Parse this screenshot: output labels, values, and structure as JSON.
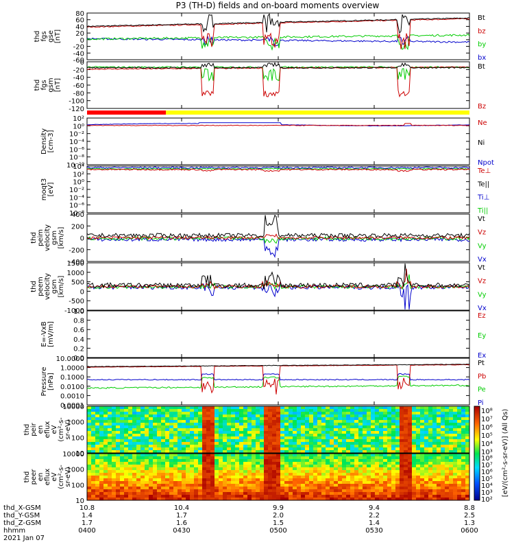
{
  "title": "P3 (TH-D) fields and on-board moments overview",
  "chart_data": [
    {
      "type": "line",
      "id": "fgs-gse",
      "ylabel": [
        "thd",
        "fgs",
        "gse",
        "[nT]"
      ],
      "yticks": [
        "80",
        "60",
        "40",
        "20",
        "0",
        "-20",
        "-40",
        "-60"
      ],
      "ylim": [
        -60,
        80
      ],
      "legend": [
        {
          "label": "Bt",
          "color": "#000000"
        },
        {
          "label": "bz",
          "color": "#cc0000"
        },
        {
          "label": "by",
          "color": "#00cc00"
        },
        {
          "label": "bx",
          "color": "#0000cc"
        }
      ]
    },
    {
      "type": "line",
      "id": "fgs-gsm",
      "ylabel": [
        "thd",
        "fgs",
        "gsm",
        "[nT]"
      ],
      "yticks": [
        "0",
        "-20",
        "-40",
        "-60",
        "-80",
        "-100",
        "-120"
      ],
      "ylim": [
        -130,
        10
      ],
      "legend": [
        {
          "label": "Bt",
          "color": "#000000"
        },
        {
          "label": "Bz",
          "color": "#cc0000"
        }
      ]
    },
    {
      "type": "line",
      "id": "density",
      "ylabel": [
        "Density",
        "[cm-3]"
      ],
      "yticks": [
        "10²",
        "10⁰",
        "10⁻²",
        "10⁻⁴",
        "10⁻⁶",
        "10⁻⁸",
        "10⁻¹⁰"
      ],
      "scale": "log",
      "legend": [
        {
          "label": "Ne",
          "color": "#cc0000"
        },
        {
          "label": "Ni",
          "color": "#000000"
        },
        {
          "label": "Npot",
          "color": "#0000cc"
        }
      ]
    },
    {
      "type": "line",
      "id": "temperature",
      "ylabel": [
        "moqt3",
        "[eV]"
      ],
      "yticks": [
        "10⁴",
        "10²",
        "10⁰",
        "10⁻²",
        "10⁻⁴",
        "10⁻⁶",
        "10⁻⁸"
      ],
      "scale": "log",
      "legend": [
        {
          "label": "Te⊥",
          "color": "#cc0000"
        },
        {
          "label": "Te||",
          "color": "#000000"
        },
        {
          "label": "Ti⊥",
          "color": "#0000cc"
        },
        {
          "label": "Ti||",
          "color": "#00cc00"
        }
      ]
    },
    {
      "type": "line",
      "id": "peim-velocity",
      "ylabel": [
        "thd",
        "peim",
        "velocity",
        "gsm",
        "[km/s]"
      ],
      "yticks": [
        "400",
        "200",
        "0",
        "-200",
        "-400"
      ],
      "ylim": [
        -400,
        400
      ],
      "legend": [
        {
          "label": "Vt",
          "color": "#000000"
        },
        {
          "label": "Vz",
          "color": "#cc0000"
        },
        {
          "label": "Vy",
          "color": "#00cc00"
        },
        {
          "label": "Vx",
          "color": "#0000cc"
        }
      ]
    },
    {
      "type": "line",
      "id": "peem-velocity",
      "ylabel": [
        "thd",
        "peem",
        "velocity",
        "gsm",
        "[km/s]"
      ],
      "yticks": [
        "1500",
        "1000",
        "500",
        "0",
        "-500",
        "-1000"
      ],
      "ylim": [
        -1500,
        1500
      ],
      "legend": [
        {
          "label": "Vt",
          "color": "#000000"
        },
        {
          "label": "Vz",
          "color": "#cc0000"
        },
        {
          "label": "Vy",
          "color": "#00cc00"
        },
        {
          "label": "Vx",
          "color": "#0000cc"
        }
      ]
    },
    {
      "type": "line",
      "id": "efield",
      "ylabel": [
        "E=-VxB",
        "[mV/m]"
      ],
      "yticks": [
        "1.0",
        "0.8",
        "0.6",
        "0.4",
        "0.2",
        "0.0"
      ],
      "ylim": [
        0,
        1
      ],
      "legend": [
        {
          "label": "Ez",
          "color": "#cc0000"
        },
        {
          "label": "Ey",
          "color": "#00cc00"
        },
        {
          "label": "Ex",
          "color": "#0000cc"
        }
      ]
    },
    {
      "type": "line",
      "id": "pressure",
      "ylabel": [
        "Pressure",
        "[nPa]"
      ],
      "yticks": [
        "10.0000",
        "1.0000",
        "0.1000",
        "0.0100",
        "0.0010",
        "0.0001"
      ],
      "scale": "log",
      "legend": [
        {
          "label": "Pt",
          "color": "#000000"
        },
        {
          "label": "Pb",
          "color": "#cc0000"
        },
        {
          "label": "Pe",
          "color": "#00cc00"
        },
        {
          "label": "Pi",
          "color": "#0000cc"
        }
      ]
    },
    {
      "type": "heatmap",
      "id": "peir-eflux",
      "ylabel": [
        "thd",
        "peir",
        "en",
        "eflux",
        "eV",
        "(cm²-s-",
        "sr-eV)"
      ],
      "yticks": [
        "10000",
        "1000",
        "100",
        "10"
      ],
      "colorbar_ticks": [
        "10⁸",
        "10⁷",
        "10⁶",
        "10⁵",
        "10⁴",
        "10³"
      ],
      "colorbar_label": "[eV/(cm²-s-sr-eV)] (All Qs)"
    },
    {
      "type": "heatmap",
      "id": "peer-eflux",
      "ylabel": [
        "thd",
        "peer",
        "en",
        "eflux",
        "eV",
        "(cm²-s-",
        "sr-eV)"
      ],
      "yticks": [
        "10000",
        "1000",
        "100",
        "10"
      ],
      "colorbar_ticks": [
        "10⁸",
        "10⁷",
        "10⁶",
        "10⁵",
        "10⁴",
        "10³",
        "10²"
      ],
      "colorbar_label": "[eV/(cm²-s-sr-eV)]"
    }
  ],
  "footer": {
    "rows": [
      {
        "label": "thd_X-GSM",
        "values": [
          "10.8",
          "10.4",
          "9.9",
          "9.4",
          "8.8"
        ]
      },
      {
        "label": "thd_Y-GSM",
        "values": [
          "1.4",
          "1.7",
          "2.0",
          "2.2",
          "2.5"
        ]
      },
      {
        "label": "thd_Z-GSM",
        "values": [
          "1.7",
          "1.6",
          "1.5",
          "1.4",
          "1.3"
        ]
      },
      {
        "label": "hhmm",
        "values": [
          "0400",
          "0430",
          "0500",
          "0530",
          "0600"
        ]
      }
    ],
    "date": "2021 Jan 07"
  },
  "colors": {
    "red": "#cc0000",
    "green": "#00cc00",
    "blue": "#0000cc",
    "bar_red": "#ff0000",
    "bar_yellow": "#ffff00"
  }
}
